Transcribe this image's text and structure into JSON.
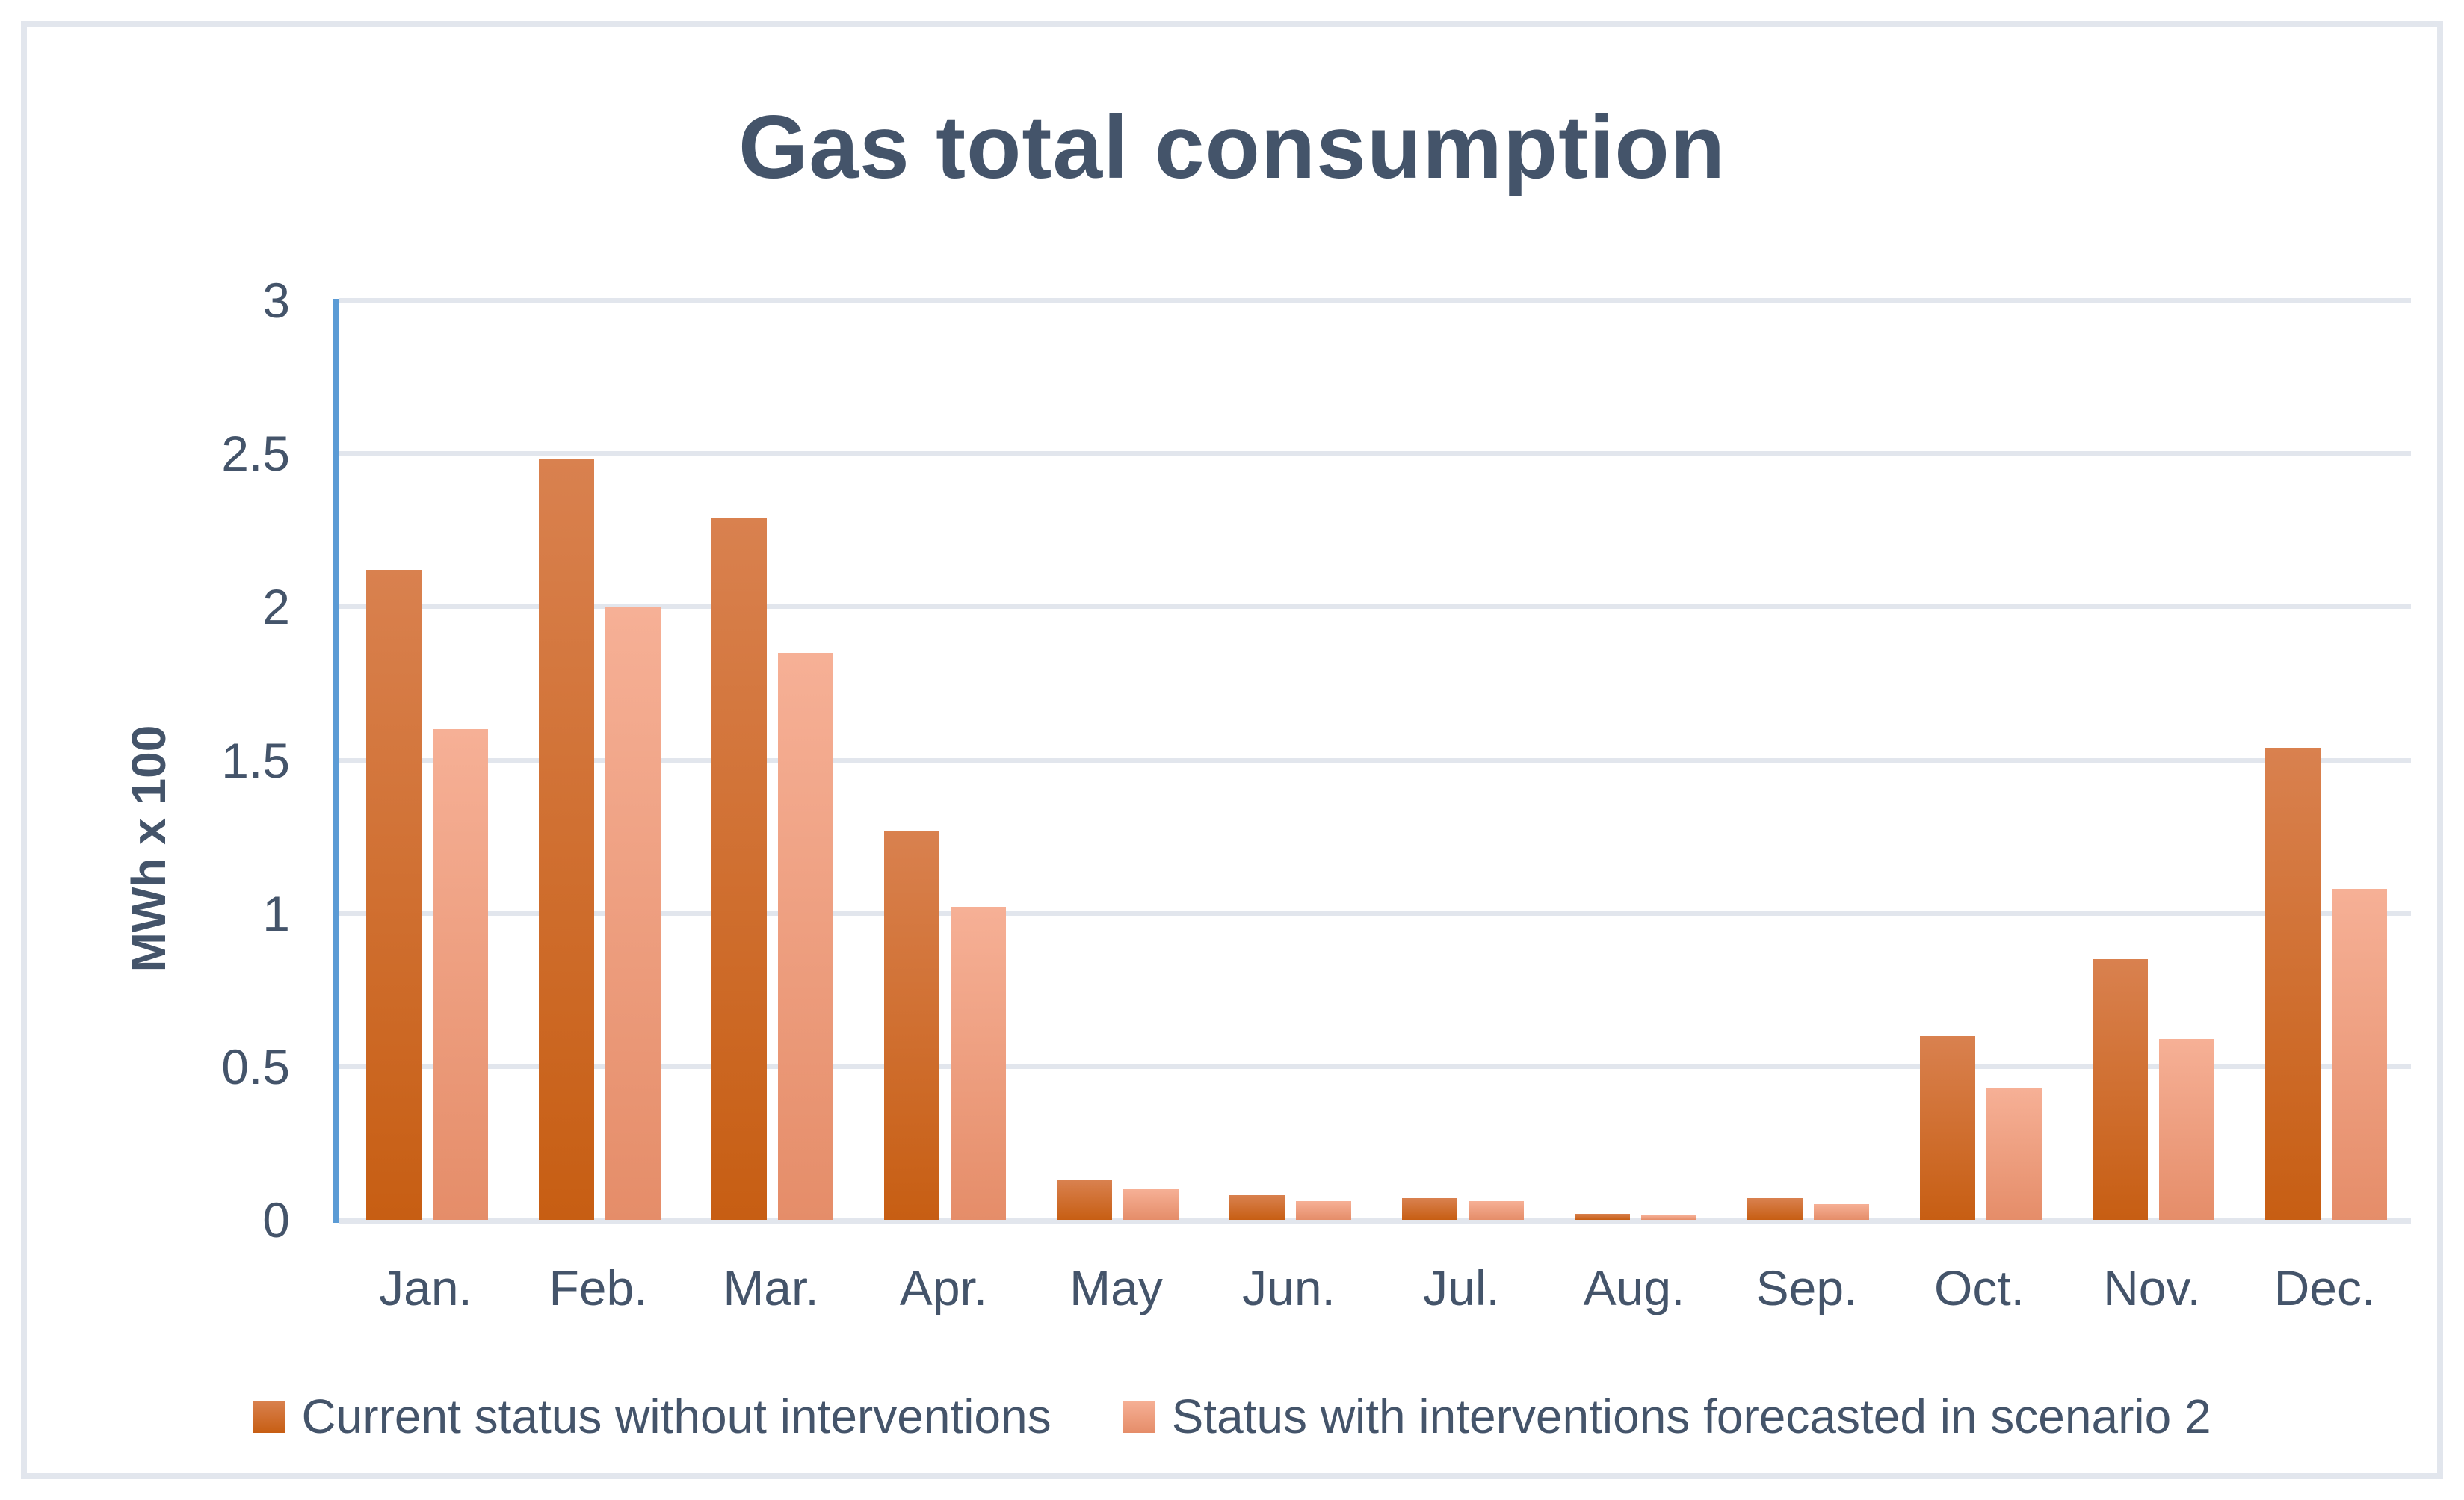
{
  "chart_data": {
    "type": "bar",
    "title": "Gas total consumption",
    "xlabel": "",
    "ylabel": "MWh x 100",
    "ylim": [
      0,
      3
    ],
    "ytick_step": 0.5,
    "ytick_labels": [
      "0",
      "0.5",
      "1",
      "1.5",
      "2",
      "2.5",
      "3"
    ],
    "grid": true,
    "legend_position": "bottom",
    "categories": [
      "Jan.",
      "Feb.",
      "Mar.",
      "Apr.",
      "May",
      "Jun.",
      "Jul.",
      "Aug.",
      "Sep.",
      "Oct.",
      "Nov.",
      "Dec."
    ],
    "series": [
      {
        "name": "Current status without interventions",
        "values": [
          2.12,
          2.48,
          2.29,
          1.27,
          0.13,
          0.08,
          0.07,
          0.02,
          0.07,
          0.6,
          0.85,
          1.54
        ],
        "color_top": "#D9814F",
        "color_bottom": "#C75E13"
      },
      {
        "name": "Status with interventions forecasted in scenario 2",
        "values": [
          1.6,
          2.0,
          1.85,
          1.02,
          0.1,
          0.06,
          0.06,
          0.015,
          0.05,
          0.43,
          0.59,
          1.08
        ],
        "color_top": "#F6B096",
        "color_bottom": "#E58D69"
      }
    ]
  },
  "colors": {
    "text": "#44546A",
    "gridline": "#E2E6ED",
    "axis_line": "#5B9BD5",
    "background": "#FFFFFF"
  }
}
